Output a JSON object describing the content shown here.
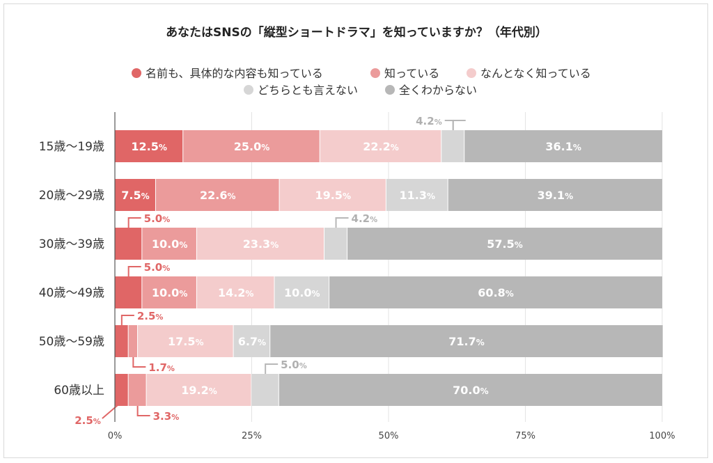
{
  "chart_data": {
    "type": "bar",
    "orientation": "horizontal",
    "stacked": true,
    "percent": true,
    "title": "あなたはSNSの「縦型ショートドラマ」を知っていますか？（年代別）",
    "categories": [
      "15歳〜19歳",
      "20歳〜29歳",
      "30歳〜39歳",
      "40歳〜49歳",
      "50歳〜59歳",
      "60歳以上"
    ],
    "series": [
      {
        "name": "名前も、具体的な内容も知っている",
        "color": "#e06666",
        "values": [
          12.5,
          7.5,
          5.0,
          5.0,
          2.5,
          2.5
        ]
      },
      {
        "name": "知っている",
        "color": "#eb9b9b",
        "values": [
          25.0,
          22.6,
          10.0,
          10.0,
          1.7,
          3.3
        ]
      },
      {
        "name": "なんとなく知っている",
        "color": "#f4cccc",
        "values": [
          22.2,
          19.5,
          23.3,
          14.2,
          17.5,
          19.2
        ]
      },
      {
        "name": "どちらとも言えない",
        "color": "#d6d6d6",
        "values": [
          4.2,
          11.3,
          4.2,
          10.0,
          6.7,
          5.0
        ]
      },
      {
        "name": "全くわからない",
        "color": "#b7b7b7",
        "values": [
          36.1,
          39.1,
          57.5,
          60.8,
          71.7,
          70.0
        ]
      }
    ],
    "xlim": [
      0,
      100
    ],
    "xticks": [
      "0%",
      "25%",
      "50%",
      "75%",
      "100%"
    ],
    "legend_position": "top",
    "grid": true,
    "percent_suffix": "%"
  }
}
